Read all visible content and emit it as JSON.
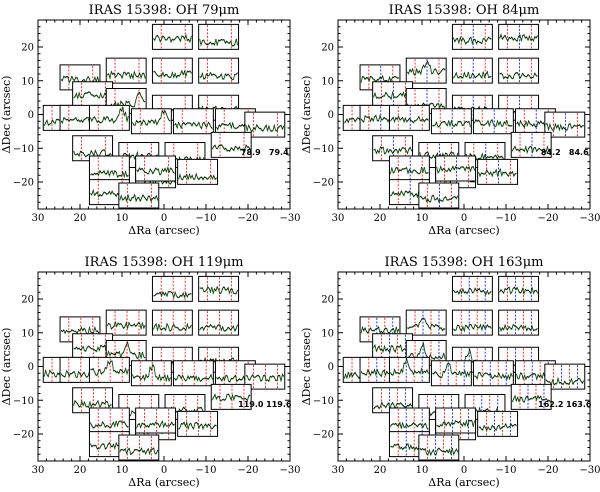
{
  "figure": {
    "x_label": "ΔRa (arcsec)",
    "y_label": "ΔDec (arcsec)"
  },
  "chart_data": [
    {
      "type": "spectral-map",
      "title": "IRAS 15398: OH 79μm",
      "xlabel": "ΔRa (arcsec)",
      "ylabel": "ΔDec (arcsec)",
      "xlim": [
        30,
        -30
      ],
      "ylim": [
        -28,
        28
      ],
      "xticks": [
        30,
        20,
        10,
        0,
        -10,
        -20,
        -30
      ],
      "yticks": [
        -20,
        -10,
        0,
        10,
        20
      ],
      "wavelength_labels": [
        "78.9",
        "79.4"
      ],
      "line_colors": [
        "#ff0000",
        "#ff0000"
      ],
      "strong_emission_spaxels": [
        7,
        12,
        13
      ]
    },
    {
      "type": "spectral-map",
      "title": "IRAS 15398: OH 84μm",
      "xlabel": "ΔRa (arcsec)",
      "ylabel": "ΔDec (arcsec)",
      "xlim": [
        30,
        -30
      ],
      "ylim": [
        -28,
        28
      ],
      "xticks": [
        30,
        20,
        10,
        0,
        -10,
        -20,
        -30
      ],
      "yticks": [
        -20,
        -10,
        0,
        10,
        20
      ],
      "wavelength_labels": [
        "84.2",
        "84.6"
      ],
      "line_colors": [
        "#ff0000",
        "#0000ff",
        "#ff0000"
      ],
      "strong_emission_spaxels": [
        3
      ]
    },
    {
      "type": "spectral-map",
      "title": "IRAS 15398: OH 119μm",
      "xlabel": "ΔRa (arcsec)",
      "ylabel": "ΔDec (arcsec)",
      "xlim": [
        30,
        -30
      ],
      "ylim": [
        -28,
        28
      ],
      "xticks": [
        30,
        20,
        10,
        0,
        -10,
        -20,
        -30
      ],
      "yticks": [
        -20,
        -10,
        0,
        10,
        20
      ],
      "wavelength_labels": [
        "119.0",
        "119.6"
      ],
      "line_colors": [
        "#ff0000",
        "#ff0000",
        "#ff0000"
      ],
      "strong_emission_spaxels": [
        7,
        12,
        13
      ]
    },
    {
      "type": "spectral-map",
      "title": "IRAS 15398: OH 163μm",
      "xlabel": "ΔRa (arcsec)",
      "ylabel": "ΔDec (arcsec)",
      "xlim": [
        30,
        -30
      ],
      "ylim": [
        -28,
        28
      ],
      "xticks": [
        30,
        20,
        10,
        0,
        -10,
        -20,
        -30
      ],
      "yticks": [
        -20,
        -10,
        0,
        10,
        20
      ],
      "wavelength_labels": [
        "162.2",
        "163.6"
      ],
      "line_colors": [
        "#ff0000",
        "#0000ff",
        "#ff0000",
        "#0000ff"
      ],
      "strong_emission_spaxels": [
        3,
        7,
        8,
        12,
        13
      ]
    }
  ]
}
